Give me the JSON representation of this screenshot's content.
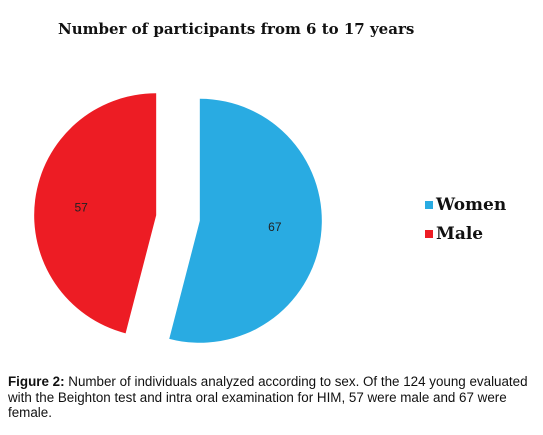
{
  "chart_data": {
    "type": "pie",
    "title": "Number of participants from 6 to 17 years",
    "slices": [
      {
        "name": "Women",
        "value": 67,
        "color": "#29ABE2"
      },
      {
        "name": "Male",
        "value": 57,
        "color": "#ED1C24"
      }
    ],
    "exploded": true,
    "legend_position": "right"
  },
  "caption": {
    "label": "Figure 2:",
    "text": " Number of individuals analyzed according to sex. Of the 124 young evaluated with the Beighton test and intra oral examination for HIM, 57 were male and 67 were female."
  }
}
